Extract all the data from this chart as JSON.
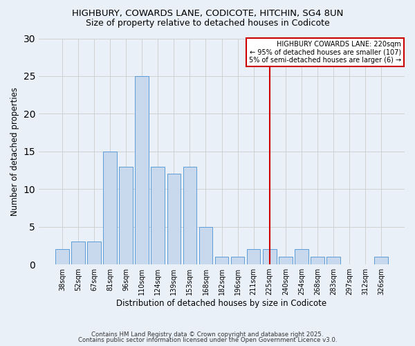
{
  "title_line1": "HIGHBURY, COWARDS LANE, CODICOTE, HITCHIN, SG4 8UN",
  "title_line2": "Size of property relative to detached houses in Codicote",
  "xlabel": "Distribution of detached houses by size in Codicote",
  "ylabel": "Number of detached properties",
  "categories": [
    "38sqm",
    "52sqm",
    "67sqm",
    "81sqm",
    "96sqm",
    "110sqm",
    "124sqm",
    "139sqm",
    "153sqm",
    "168sqm",
    "182sqm",
    "196sqm",
    "211sqm",
    "225sqm",
    "240sqm",
    "254sqm",
    "268sqm",
    "283sqm",
    "297sqm",
    "312sqm",
    "326sqm"
  ],
  "values": [
    2,
    3,
    3,
    15,
    13,
    25,
    13,
    12,
    13,
    5,
    1,
    1,
    2,
    2,
    1,
    2,
    1,
    1,
    0,
    0,
    1
  ],
  "bar_color": "#c9d9ed",
  "bar_edge_color": "#5b9bd5",
  "vertical_line_x": 13,
  "vertical_line_color": "#cc0000",
  "legend_title": "HIGHBURY COWARDS LANE: 220sqm",
  "legend_line1": "← 95% of detached houses are smaller (107)",
  "legend_line2": "5% of semi-detached houses are larger (6) →",
  "legend_box_color": "#ffffff",
  "legend_box_edge_color": "#cc0000",
  "background_color": "#eaf0f8",
  "ylim": [
    0,
    30
  ],
  "yticks": [
    0,
    5,
    10,
    15,
    20,
    25,
    30
  ],
  "footer_line1": "Contains HM Land Registry data © Crown copyright and database right 2025.",
  "footer_line2": "Contains public sector information licensed under the Open Government Licence v3.0."
}
